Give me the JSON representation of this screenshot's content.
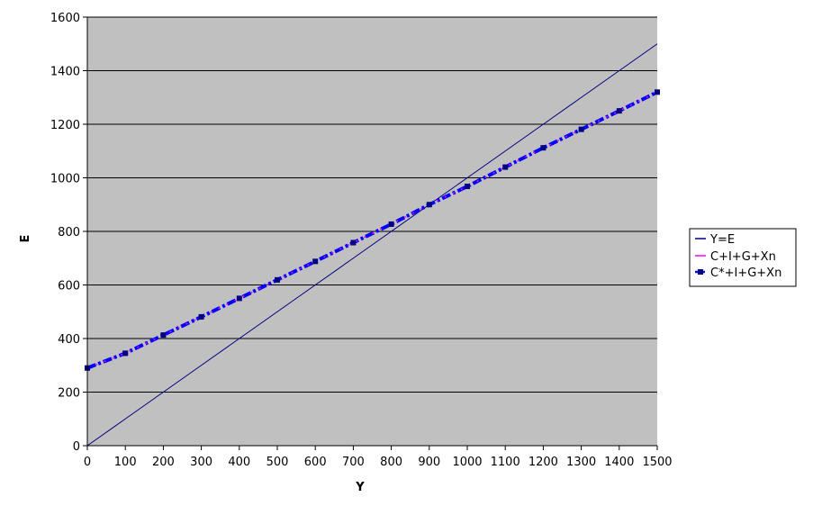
{
  "chart_data": {
    "type": "line",
    "xlabel": "Y",
    "ylabel": "E",
    "xlim": [
      0,
      1500
    ],
    "ylim": [
      0,
      1600
    ],
    "x_ticks": [
      "0",
      "100",
      "200",
      "300",
      "400",
      "500",
      "600",
      "700",
      "800",
      "900",
      "1000",
      "1100",
      "1200",
      "1300",
      "1400",
      "1500"
    ],
    "y_ticks": [
      "0",
      "200",
      "400",
      "600",
      "800",
      "1000",
      "1200",
      "1400",
      "1600"
    ],
    "grid": true,
    "legend_position": "right",
    "x": [
      0,
      100,
      200,
      300,
      400,
      500,
      600,
      700,
      800,
      900,
      1000,
      1100,
      1200,
      1300,
      1400,
      1500
    ],
    "series": [
      {
        "name": "Y=E",
        "color": "#000080",
        "values": [
          0,
          100,
          200,
          300,
          400,
          500,
          600,
          700,
          800,
          900,
          1000,
          1100,
          1200,
          1300,
          1400,
          1500
        ]
      },
      {
        "name": "C+I+G+Xn",
        "color": "#ff00ff",
        "values": [
          290,
          345,
          413,
          481,
          550,
          619,
          688,
          758,
          827,
          900,
          968,
          1040,
          1112,
          1181,
          1250,
          1320
        ]
      },
      {
        "name": "C*+I+G+Xn",
        "color": "#0000ff",
        "values": [
          290,
          345,
          413,
          481,
          550,
          619,
          688,
          758,
          827,
          900,
          968,
          1040,
          1112,
          1181,
          1250,
          1320
        ]
      }
    ]
  },
  "colors": {
    "plot_background": "#c0c0c0",
    "gridline": "#000000"
  }
}
